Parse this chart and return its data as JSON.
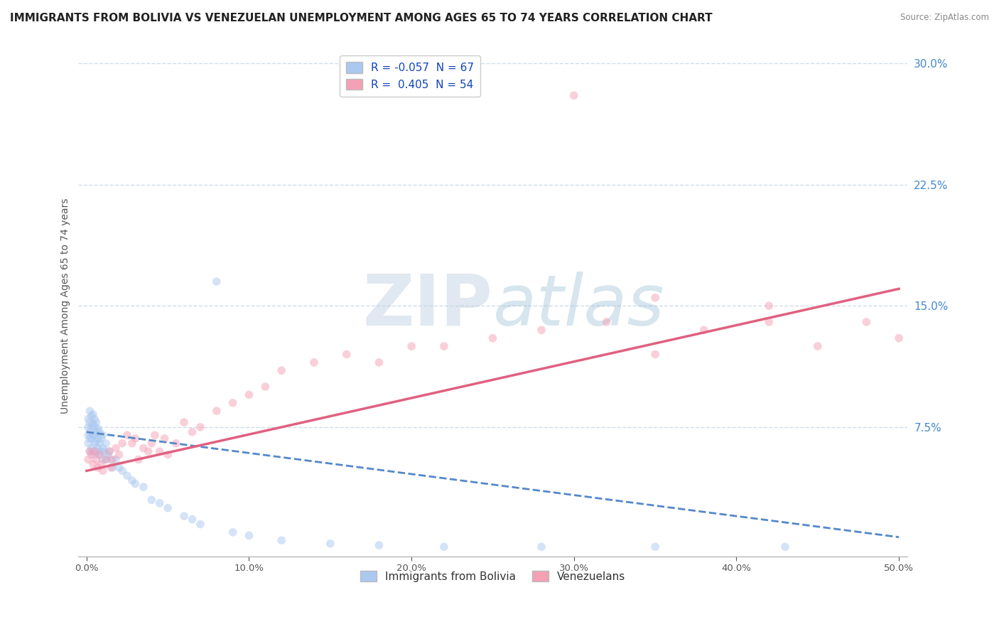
{
  "title": "IMMIGRANTS FROM BOLIVIA VS VENEZUELAN UNEMPLOYMENT AMONG AGES 65 TO 74 YEARS CORRELATION CHART",
  "source": "Source: ZipAtlas.com",
  "ylabel": "Unemployment Among Ages 65 to 74 years",
  "xlim": [
    -0.005,
    0.505
  ],
  "ylim": [
    -0.005,
    0.305
  ],
  "xticks": [
    0.0,
    0.1,
    0.2,
    0.3,
    0.4,
    0.5
  ],
  "xtick_labels": [
    "0.0%",
    "10.0%",
    "20.0%",
    "30.0%",
    "40.0%",
    "50.0%"
  ],
  "yticks_right": [
    0.075,
    0.15,
    0.225,
    0.3
  ],
  "ytick_labels_right": [
    "7.5%",
    "15.0%",
    "22.5%",
    "30.0%"
  ],
  "bolivia_R": -0.057,
  "bolivia_N": 67,
  "venezuela_R": 0.405,
  "venezuela_N": 54,
  "bolivia_color": "#aac8f0",
  "venezuela_color": "#f4a0b5",
  "bolivia_line_color": "#5588cc",
  "venezuela_line_color": "#e06080",
  "bolivia_scatter_x": [
    0.001,
    0.001,
    0.001,
    0.001,
    0.002,
    0.002,
    0.002,
    0.002,
    0.002,
    0.003,
    0.003,
    0.003,
    0.003,
    0.004,
    0.004,
    0.004,
    0.004,
    0.005,
    0.005,
    0.005,
    0.005,
    0.005,
    0.006,
    0.006,
    0.006,
    0.006,
    0.007,
    0.007,
    0.007,
    0.008,
    0.008,
    0.008,
    0.009,
    0.009,
    0.01,
    0.01,
    0.01,
    0.011,
    0.012,
    0.012,
    0.013,
    0.014,
    0.015,
    0.016,
    0.018,
    0.02,
    0.022,
    0.025,
    0.028,
    0.03,
    0.035,
    0.04,
    0.045,
    0.05,
    0.06,
    0.065,
    0.07,
    0.08,
    0.09,
    0.1,
    0.12,
    0.15,
    0.18,
    0.22,
    0.28,
    0.35,
    0.43
  ],
  "bolivia_scatter_y": [
    0.065,
    0.07,
    0.075,
    0.08,
    0.06,
    0.068,
    0.072,
    0.078,
    0.085,
    0.062,
    0.068,
    0.075,
    0.082,
    0.06,
    0.07,
    0.077,
    0.083,
    0.058,
    0.065,
    0.07,
    0.075,
    0.08,
    0.06,
    0.066,
    0.072,
    0.078,
    0.062,
    0.068,
    0.074,
    0.058,
    0.065,
    0.072,
    0.06,
    0.068,
    0.055,
    0.062,
    0.07,
    0.06,
    0.055,
    0.065,
    0.058,
    0.06,
    0.055,
    0.05,
    0.055,
    0.05,
    0.048,
    0.045,
    0.042,
    0.04,
    0.038,
    0.03,
    0.028,
    0.025,
    0.02,
    0.018,
    0.015,
    0.165,
    0.01,
    0.008,
    0.005,
    0.003,
    0.002,
    0.001,
    0.001,
    0.001,
    0.001
  ],
  "venezuela_scatter_x": [
    0.001,
    0.002,
    0.003,
    0.004,
    0.005,
    0.006,
    0.007,
    0.008,
    0.009,
    0.01,
    0.012,
    0.014,
    0.015,
    0.016,
    0.018,
    0.02,
    0.022,
    0.025,
    0.028,
    0.03,
    0.032,
    0.035,
    0.038,
    0.04,
    0.042,
    0.045,
    0.048,
    0.05,
    0.055,
    0.06,
    0.065,
    0.07,
    0.08,
    0.09,
    0.1,
    0.11,
    0.12,
    0.14,
    0.16,
    0.18,
    0.2,
    0.22,
    0.25,
    0.28,
    0.3,
    0.32,
    0.35,
    0.38,
    0.42,
    0.45,
    0.48,
    0.5,
    0.35,
    0.42
  ],
  "venezuela_scatter_y": [
    0.055,
    0.06,
    0.058,
    0.052,
    0.06,
    0.055,
    0.05,
    0.058,
    0.052,
    0.048,
    0.055,
    0.06,
    0.05,
    0.055,
    0.062,
    0.058,
    0.065,
    0.07,
    0.065,
    0.068,
    0.055,
    0.062,
    0.06,
    0.065,
    0.07,
    0.06,
    0.068,
    0.058,
    0.065,
    0.078,
    0.072,
    0.075,
    0.085,
    0.09,
    0.095,
    0.1,
    0.11,
    0.115,
    0.12,
    0.115,
    0.125,
    0.125,
    0.13,
    0.135,
    0.28,
    0.14,
    0.155,
    0.135,
    0.15,
    0.125,
    0.14,
    0.13,
    0.12,
    0.14
  ],
  "watermark_zip": "ZIP",
  "watermark_atlas": "atlas",
  "background_color": "#ffffff",
  "grid_color": "#d0dde8",
  "title_fontsize": 11,
  "axis_label_fontsize": 10,
  "tick_fontsize": 9.5,
  "legend_fontsize": 11,
  "scatter_size": 70,
  "scatter_alpha": 0.5,
  "bolivia_line_intercept": 0.072,
  "bolivia_line_slope": -0.13,
  "venezuela_line_intercept": 0.048,
  "venezuela_line_slope": 0.225
}
